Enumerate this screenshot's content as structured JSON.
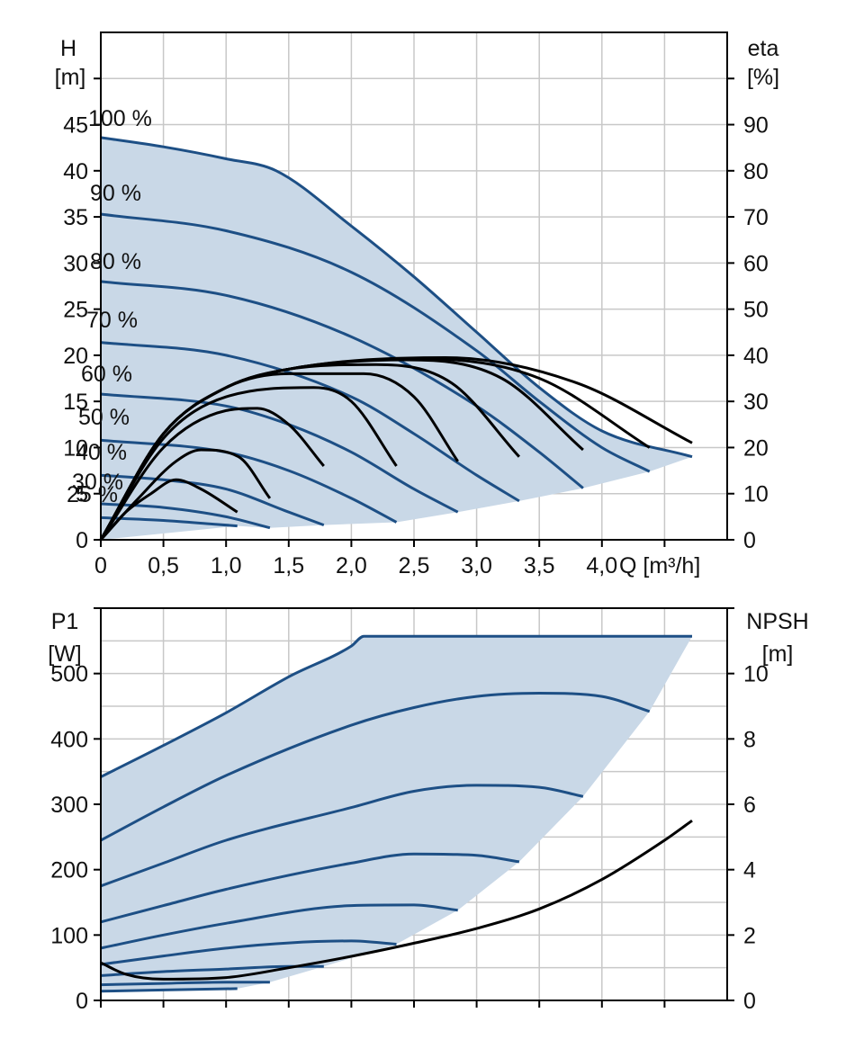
{
  "colors": {
    "band_fill": "#c9d8e7",
    "speed_curve": "#1d4f85",
    "efficiency_curve": "#000000",
    "npsh_curve": "#000000",
    "grid": "#c8c8c8",
    "axis": "#000000"
  },
  "chart_data": [
    {
      "type": "line",
      "name": "head-efficiency",
      "axes": {
        "x": {
          "label": "Q [m³/h]",
          "range": [
            0,
            5.0
          ],
          "ticks": [
            0,
            0.5,
            1.0,
            1.5,
            2.0,
            2.5,
            3.0,
            3.5,
            4.0
          ],
          "tick_labels": [
            "0",
            "0,5",
            "1,0",
            "1,5",
            "2,0",
            "2,5",
            "3,0",
            "3,5",
            "4,0"
          ]
        },
        "y_left": {
          "label_line1": "H",
          "label_line2": "[m]",
          "range": [
            0,
            55
          ],
          "ticks": [
            0,
            5,
            10,
            15,
            20,
            25,
            30,
            35,
            40,
            45
          ]
        },
        "y_right": {
          "label_line1": "eta",
          "label_line2": "[%]",
          "range": [
            0,
            110
          ],
          "ticks": [
            0,
            10,
            20,
            30,
            40,
            50,
            60,
            70,
            80,
            90
          ]
        }
      },
      "grid": true,
      "operating_area": {
        "upper_series": "100 %",
        "lower_boundary": [
          [
            1.09,
            1.5
          ],
          [
            1.35,
            1.3
          ],
          [
            1.78,
            1.6
          ],
          [
            2.36,
            1.9
          ],
          [
            2.85,
            3.0
          ],
          [
            3.34,
            4.2
          ],
          [
            3.85,
            5.6
          ],
          [
            4.38,
            7.4
          ],
          [
            4.72,
            9.0
          ]
        ]
      },
      "speed_series": [
        {
          "name": "100 %",
          "points": [
            [
              0,
              43.6
            ],
            [
              0.5,
              42.6
            ],
            [
              1.0,
              41.3
            ],
            [
              1.4,
              40.0
            ],
            [
              2.0,
              34.0
            ],
            [
              2.5,
              28.5
            ],
            [
              3.0,
              22.5
            ],
            [
              3.5,
              16.5
            ],
            [
              4.0,
              11.8
            ],
            [
              4.72,
              9.0
            ]
          ]
        },
        {
          "name": "90 %",
          "points": [
            [
              0,
              35.3
            ],
            [
              1.0,
              33.5
            ],
            [
              2.0,
              29.0
            ],
            [
              3.0,
              20.5
            ],
            [
              3.5,
              15.0
            ],
            [
              4.0,
              10.0
            ],
            [
              4.38,
              7.4
            ]
          ]
        },
        {
          "name": "80 %",
          "points": [
            [
              0,
              28.0
            ],
            [
              1.0,
              26.5
            ],
            [
              2.0,
              22.0
            ],
            [
              3.0,
              14.5
            ],
            [
              3.5,
              9.5
            ],
            [
              3.85,
              5.6
            ]
          ]
        },
        {
          "name": "70 %",
          "points": [
            [
              0,
              21.4
            ],
            [
              1.0,
              20.0
            ],
            [
              2.0,
              15.5
            ],
            [
              2.5,
              11.5
            ],
            [
              3.0,
              7.0
            ],
            [
              3.34,
              4.2
            ]
          ]
        },
        {
          "name": "60 %",
          "points": [
            [
              0,
              15.8
            ],
            [
              1.0,
              14.5
            ],
            [
              1.5,
              12.5
            ],
            [
              2.0,
              9.5
            ],
            [
              2.5,
              5.5
            ],
            [
              2.85,
              3.0
            ]
          ]
        },
        {
          "name": "50 %",
          "points": [
            [
              0,
              10.8
            ],
            [
              1.0,
              9.5
            ],
            [
              1.5,
              7.5
            ],
            [
              2.0,
              4.5
            ],
            [
              2.36,
              1.9
            ]
          ]
        },
        {
          "name": "40 %",
          "points": [
            [
              0,
              7.0
            ],
            [
              0.5,
              6.5
            ],
            [
              1.0,
              5.5
            ],
            [
              1.5,
              3.0
            ],
            [
              1.78,
              1.6
            ]
          ]
        },
        {
          "name": "30 %",
          "points": [
            [
              0,
              3.9
            ],
            [
              0.5,
              3.5
            ],
            [
              1.0,
              2.5
            ],
            [
              1.35,
              1.3
            ]
          ]
        },
        {
          "name": "25 %",
          "points": [
            [
              0,
              2.4
            ],
            [
              0.5,
              2.1
            ],
            [
              0.9,
              1.7
            ],
            [
              1.09,
              1.5
            ]
          ]
        }
      ],
      "efficiency_series": [
        {
          "points": [
            [
              0,
              0
            ],
            [
              0.2,
              6
            ],
            [
              0.4,
              10
            ],
            [
              0.6,
              13
            ],
            [
              0.8,
              11
            ],
            [
              1.09,
              6
            ]
          ]
        },
        {
          "points": [
            [
              0,
              0
            ],
            [
              0.3,
              9
            ],
            [
              0.6,
              17
            ],
            [
              0.8,
              19.5
            ],
            [
              1.1,
              18
            ],
            [
              1.35,
              9
            ]
          ]
        },
        {
          "points": [
            [
              0,
              0
            ],
            [
              0.5,
              20
            ],
            [
              1.0,
              28
            ],
            [
              1.25,
              28.5
            ],
            [
              1.5,
              25
            ],
            [
              1.78,
              16
            ]
          ]
        },
        {
          "points": [
            [
              0,
              0
            ],
            [
              0.5,
              22
            ],
            [
              1.0,
              31
            ],
            [
              1.7,
              33
            ],
            [
              2.0,
              30
            ],
            [
              2.36,
              16
            ]
          ]
        },
        {
          "points": [
            [
              0,
              0
            ],
            [
              0.5,
              23
            ],
            [
              1.0,
              33
            ],
            [
              1.5,
              36
            ],
            [
              2.1,
              36
            ],
            [
              2.5,
              31
            ],
            [
              2.85,
              17
            ]
          ]
        },
        {
          "points": [
            [
              0,
              0
            ],
            [
              0.5,
              23
            ],
            [
              1.0,
              33
            ],
            [
              1.5,
              37
            ],
            [
              2.2,
              38
            ],
            [
              2.8,
              34
            ],
            [
              3.34,
              18
            ]
          ]
        },
        {
          "points": [
            [
              0,
              0
            ],
            [
              0.5,
              23
            ],
            [
              1.0,
              33
            ],
            [
              1.5,
              37
            ],
            [
              2.45,
              39
            ],
            [
              3.2,
              35
            ],
            [
              3.85,
              19.5
            ]
          ]
        },
        {
          "points": [
            [
              0,
              0
            ],
            [
              0.5,
              23
            ],
            [
              1.0,
              33
            ],
            [
              1.5,
              37
            ],
            [
              2.6,
              39.2
            ],
            [
              3.5,
              35
            ],
            [
              4.38,
              20
            ]
          ]
        },
        {
          "points": [
            [
              0,
              0
            ],
            [
              0.5,
              23
            ],
            [
              1.0,
              33
            ],
            [
              1.5,
              37
            ],
            [
              2.75,
              39.5
            ],
            [
              3.8,
              34
            ],
            [
              4.72,
              21
            ]
          ]
        }
      ]
    },
    {
      "type": "line",
      "name": "power-npsh",
      "axes": {
        "x": {
          "range": [
            0,
            5.0
          ],
          "ticks": [
            0,
            0.5,
            1.0,
            1.5,
            2.0,
            2.5,
            3.0,
            3.5,
            4.0,
            4.5
          ]
        },
        "y_left": {
          "label_line1": "P1",
          "label_line2": "[W]",
          "range": [
            0,
            600
          ],
          "ticks": [
            0,
            100,
            200,
            300,
            400,
            500
          ]
        },
        "y_right": {
          "label_line1": "NPSH",
          "label_line2": "[m]",
          "range": [
            0,
            12
          ],
          "ticks": [
            0,
            2,
            4,
            6,
            8,
            10
          ]
        }
      },
      "grid": true,
      "operating_area": {
        "upper_series": 0,
        "lower_boundary": [
          [
            1.09,
            18
          ],
          [
            1.35,
            28
          ],
          [
            1.78,
            52
          ],
          [
            2.36,
            86
          ],
          [
            2.85,
            138
          ],
          [
            3.34,
            212
          ],
          [
            3.85,
            312
          ],
          [
            4.38,
            442
          ],
          [
            4.72,
            557
          ]
        ]
      },
      "power_series": [
        {
          "points": [
            [
              0,
              342
            ],
            [
              0.5,
              390
            ],
            [
              1.0,
              440
            ],
            [
              1.5,
              495
            ],
            [
              2.0,
              542
            ],
            [
              2.1,
              557
            ],
            [
              3.0,
              557
            ],
            [
              4.72,
              557
            ]
          ]
        },
        {
          "points": [
            [
              0,
              245
            ],
            [
              0.5,
              296
            ],
            [
              1.0,
              344
            ],
            [
              2.0,
              421
            ],
            [
              2.5,
              448
            ],
            [
              3.0,
              465
            ],
            [
              3.5,
              470
            ],
            [
              4.0,
              465
            ],
            [
              4.38,
              442
            ]
          ]
        },
        {
          "points": [
            [
              0,
              175
            ],
            [
              0.5,
              210
            ],
            [
              1.0,
              245
            ],
            [
              2.0,
              295
            ],
            [
              2.5,
              320
            ],
            [
              3.0,
              329
            ],
            [
              3.5,
              326
            ],
            [
              3.85,
              312
            ]
          ]
        },
        {
          "points": [
            [
              0,
              120
            ],
            [
              0.5,
              145
            ],
            [
              1.0,
              170
            ],
            [
              2.0,
              210
            ],
            [
              2.5,
              224
            ],
            [
              3.0,
              222
            ],
            [
              3.34,
              212
            ]
          ]
        },
        {
          "points": [
            [
              0,
              80
            ],
            [
              0.5,
              100
            ],
            [
              1.0,
              118
            ],
            [
              2.0,
              145
            ],
            [
              2.5,
              146
            ],
            [
              2.85,
              138
            ]
          ]
        },
        {
          "points": [
            [
              0,
              55
            ],
            [
              0.5,
              68
            ],
            [
              1.0,
              80
            ],
            [
              1.5,
              88
            ],
            [
              2.0,
              91
            ],
            [
              2.36,
              86
            ]
          ]
        },
        {
          "points": [
            [
              0,
              38
            ],
            [
              0.5,
              44
            ],
            [
              1.0,
              48
            ],
            [
              1.5,
              52
            ],
            [
              1.78,
              52
            ]
          ]
        },
        {
          "points": [
            [
              0,
              24
            ],
            [
              0.5,
              26
            ],
            [
              1.0,
              28
            ],
            [
              1.35,
              28
            ]
          ]
        },
        {
          "points": [
            [
              0,
              14
            ],
            [
              0.5,
              16
            ],
            [
              1.09,
              18
            ]
          ]
        }
      ],
      "npsh_series": {
        "points": [
          [
            0,
            1.15
          ],
          [
            0.2,
            0.8
          ],
          [
            0.5,
            0.65
          ],
          [
            1.0,
            0.7
          ],
          [
            1.5,
            1.0
          ],
          [
            2.0,
            1.35
          ],
          [
            2.5,
            1.75
          ],
          [
            3.0,
            2.2
          ],
          [
            3.5,
            2.8
          ],
          [
            4.0,
            3.7
          ],
          [
            4.5,
            4.9
          ],
          [
            4.72,
            5.5
          ]
        ]
      }
    }
  ]
}
